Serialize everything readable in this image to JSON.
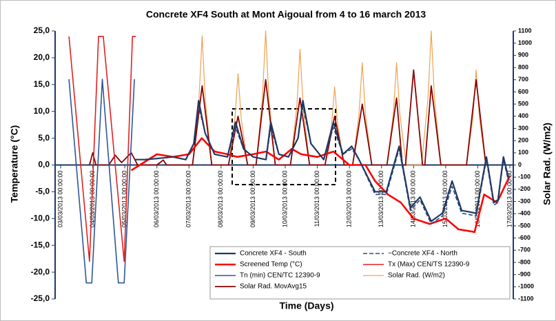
{
  "chart_data": {
    "type": "line",
    "title": "Concrete XF4  South at Mont Aigoual  from 4 to 16 march 2013",
    "x_label": "Time (Days)",
    "y_label": "Temperature (°C)",
    "y2_label": "Solar Rad. (W/m2)",
    "xlim": [
      0,
      14
    ],
    "xticks": [
      {
        "value": 0,
        "label": "03/03/2013 00:00:00"
      },
      {
        "value": 1,
        "label": "04/03/2013 00:00:00"
      },
      {
        "value": 2,
        "label": "05/03/2013 00:00:00"
      },
      {
        "value": 3,
        "label": "06/03/2013 00:00:00"
      },
      {
        "value": 4,
        "label": "07/03/2013 00:00:00"
      },
      {
        "value": 5,
        "label": "08/03/2013 00:00:00"
      },
      {
        "value": 6,
        "label": "09/03/2013 00:00:00"
      },
      {
        "value": 7,
        "label": "10/03/2013 00:00:00"
      },
      {
        "value": 8,
        "label": "11/03/2013 00:00:00"
      },
      {
        "value": 9,
        "label": "12/03/2013 00:00:00"
      },
      {
        "value": 10,
        "label": "13/03/2013 00:00:00"
      },
      {
        "value": 11,
        "label": "14/03/2013 00:00:00"
      },
      {
        "value": 12,
        "label": "15/03/2013 00:00:00"
      },
      {
        "value": 13,
        "label": "16/03/2013 00:00:00"
      },
      {
        "value": 14,
        "label": "17/03/2013 00:00:00"
      }
    ],
    "ylim": [
      -25,
      25
    ],
    "yticks": [
      {
        "value": 25,
        "label": "25,0"
      },
      {
        "value": 20,
        "label": "20,0"
      },
      {
        "value": 15,
        "label": "15,0"
      },
      {
        "value": 10,
        "label": "10,0"
      },
      {
        "value": 5,
        "label": "5,0"
      },
      {
        "value": 0,
        "label": "0,0"
      },
      {
        "value": -5,
        "label": "-5,0"
      },
      {
        "value": -10,
        "label": "-10,0"
      },
      {
        "value": -15,
        "label": "-15,0"
      },
      {
        "value": -20,
        "label": "-20,0"
      },
      {
        "value": -25,
        "label": "-25,0"
      }
    ],
    "y2lim": [
      -1100,
      1100
    ],
    "y2ticks": [
      1100,
      1000,
      900,
      800,
      700,
      600,
      500,
      400,
      300,
      200,
      100,
      0,
      -100,
      -200,
      -300,
      -400,
      -500,
      -600,
      -700,
      -800,
      -900,
      -1000,
      -1100
    ],
    "series": [
      {
        "name": "Concrete XF4 - South",
        "color": "#1f3864",
        "width": 2.2,
        "x": [
          2.3,
          2.6,
          3.0,
          3.5,
          3.9,
          4.15,
          4.3,
          4.5,
          4.8,
          5.2,
          5.45,
          5.7,
          6.0,
          6.4,
          6.55,
          6.8,
          7.1,
          7.4,
          7.55,
          7.8,
          8.2,
          8.5,
          8.8,
          9.07,
          9.3,
          9.8,
          10.15,
          10.55,
          10.9,
          11.2,
          11.55,
          11.9,
          12.2,
          12.5,
          12.95,
          13.27,
          13.5,
          13.63,
          13.8,
          13.96
        ],
        "values": [
          1,
          1,
          1.2,
          1.5,
          1,
          4,
          12,
          6,
          2,
          1.5,
          8,
          3,
          1.5,
          1,
          8,
          2,
          1.5,
          5,
          12,
          4,
          1,
          8,
          2,
          3.5,
          1,
          -5,
          -5,
          3.5,
          -8,
          -6,
          -10.5,
          -9,
          -3,
          -8.5,
          -9,
          1.5,
          -7,
          -6.5,
          1.5,
          -2.5
        ]
      },
      {
        "name": "−Concrete XF4 - North",
        "color": "#2e4a7a",
        "width": 1.6,
        "dashed": true,
        "x": [
          2.3,
          2.6,
          3.0,
          3.5,
          3.9,
          4.15,
          4.3,
          4.5,
          4.8,
          5.2,
          5.45,
          5.7,
          6.0,
          6.4,
          6.55,
          6.8,
          7.1,
          7.4,
          7.55,
          7.8,
          8.2,
          8.5,
          8.8,
          9.07,
          9.3,
          9.8,
          10.15,
          10.55,
          10.9,
          11.2,
          11.55,
          11.9,
          12.2,
          12.5,
          12.95,
          13.27,
          13.5,
          13.63,
          13.8,
          13.96
        ],
        "values": [
          1,
          1,
          1.2,
          1.5,
          1,
          4,
          11,
          6,
          2,
          1.5,
          7,
          3,
          1.5,
          1,
          7,
          2,
          1.5,
          5,
          11,
          4,
          1,
          7,
          2,
          3,
          1,
          -5.5,
          -5.5,
          3,
          -8.5,
          -6.5,
          -11,
          -9.5,
          -4,
          -9,
          -9.5,
          1,
          -7.5,
          -7,
          1,
          -3
        ]
      },
      {
        "name": "Screened Temp (°C)",
        "color": "#ff0000",
        "width": 2.6,
        "x": [
          2.2,
          2.6,
          3.0,
          3.5,
          4.0,
          4.4,
          4.8,
          5.2,
          5.5,
          6.0,
          6.4,
          6.8,
          7.2,
          7.5,
          8.0,
          8.5,
          9.0,
          9.5,
          9.8,
          10.2,
          10.6,
          11.0,
          11.5,
          12.0,
          12.4,
          12.9,
          13.2,
          13.6,
          14.0
        ],
        "values": [
          -1,
          0.5,
          2,
          1.5,
          2,
          5,
          2.5,
          2,
          1.5,
          2,
          2.5,
          1,
          3,
          2,
          1.5,
          2.5,
          0,
          0,
          -3,
          -5.5,
          -7,
          -10,
          -11,
          -10,
          -12,
          -12.5,
          -5.5,
          -7,
          -2
        ]
      },
      {
        "name": "Tx (Max) CEN/TS 12390-9",
        "color": "#e02020",
        "width": 1.6,
        "x": [
          0.26,
          0.9,
          1.18,
          1.33,
          1.98,
          2.24,
          2.35
        ],
        "values": [
          24,
          -18,
          24,
          24,
          -18,
          24,
          24
        ]
      },
      {
        "name": "Tn (min) CEN/TC 12390-9",
        "color": "#2f5597",
        "width": 1.6,
        "x": [
          0.26,
          0.8,
          0.97,
          1.3,
          1.8,
          1.98,
          2.3
        ],
        "values": [
          16,
          -22,
          -22,
          16,
          -22,
          -22,
          16
        ]
      },
      {
        "name": "Solar Rad. (W/m2)",
        "color": "#f0a050",
        "width": 1.2,
        "axis": "y2",
        "x": [
          4.11,
          4.31,
          4.41,
          4.51,
          4.71,
          5.23,
          5.43,
          5.53,
          5.63,
          5.83,
          6.09,
          6.29,
          6.39,
          6.49,
          6.69,
          7.16,
          7.36,
          7.46,
          7.56,
          7.76,
          8.24,
          8.44,
          8.54,
          8.64,
          8.84,
          9.1,
          9.3,
          9.4,
          9.5,
          9.7,
          10.17,
          10.37,
          10.47,
          10.57,
          10.77,
          11.25,
          11.45,
          11.55,
          11.65,
          11.85,
          12.65,
          12.85,
          12.95,
          13.05,
          13.25
        ],
        "values": [
          0,
          530,
          1060,
          530,
          0,
          0,
          375,
          750,
          375,
          0,
          0,
          550,
          1100,
          550,
          0,
          0,
          475,
          950,
          475,
          0,
          0,
          320,
          640,
          320,
          0,
          0,
          420,
          840,
          420,
          0,
          0,
          420,
          840,
          420,
          0,
          0,
          550,
          1100,
          550,
          0,
          0,
          390,
          780,
          390,
          0
        ]
      },
      {
        "name": "Solar Rad. MovAvg15",
        "color": "#8b0000",
        "width": 1.8,
        "axis": "y2",
        "x": [
          0.9,
          1.0,
          1.1,
          1.5,
          1.7,
          1.9,
          2.2,
          2.4,
          3.0,
          3.2,
          3.3,
          4.11,
          4.41,
          4.71,
          5.23,
          5.53,
          5.83,
          6.09,
          6.39,
          6.69,
          7.16,
          7.46,
          7.76,
          8.24,
          8.54,
          8.84,
          9.1,
          9.4,
          9.7,
          10.17,
          10.47,
          10.65,
          10.75,
          11.0,
          11.28,
          11.35,
          11.55,
          11.85,
          12.65,
          12.95,
          13.25
        ],
        "values": [
          0,
          100,
          0,
          0,
          80,
          20,
          100,
          0,
          0,
          40,
          0,
          0,
          650,
          0,
          0,
          400,
          0,
          0,
          700,
          0,
          0,
          550,
          0,
          0,
          400,
          0,
          0,
          500,
          0,
          0,
          550,
          0,
          0,
          780,
          0,
          0,
          650,
          0,
          0,
          700,
          0
        ]
      }
    ]
  }
}
